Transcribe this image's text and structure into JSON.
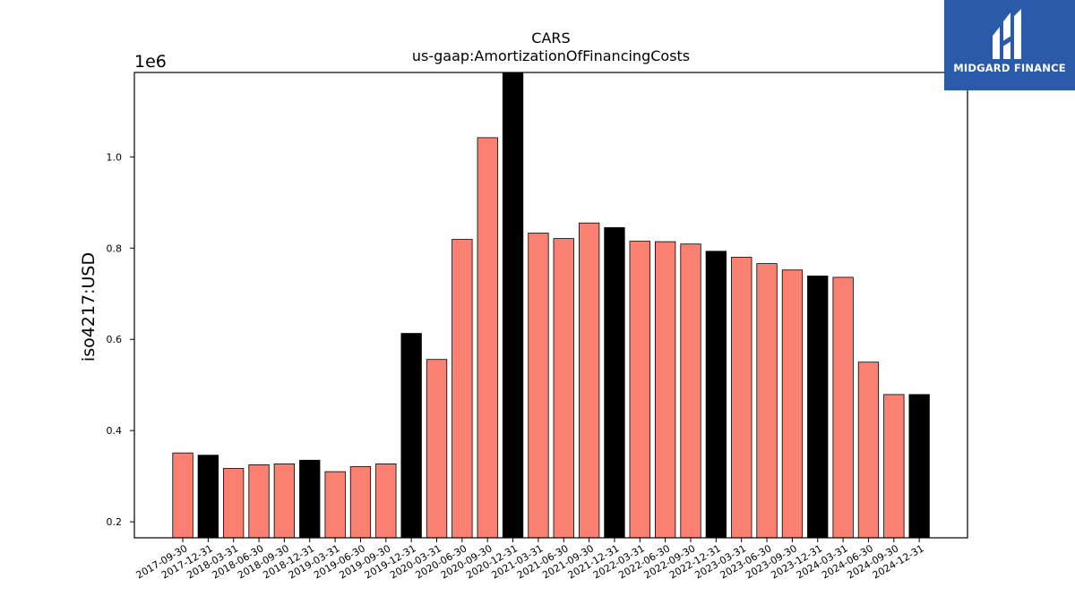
{
  "brand": {
    "name": "MIDGARD FINANCE",
    "color": "#2b5aab",
    "icon": "midgard-logo-icon"
  },
  "chart_data": {
    "type": "bar",
    "title": "CARS",
    "subtitle": "us-gaap:AmortizationOfFinancingCosts",
    "ylabel": "iso4217:USD",
    "xlabel": "",
    "y_offset_label": "1e6",
    "ylim": [
      0.165,
      1.185
    ],
    "yticks": [
      0.2,
      0.4,
      0.6,
      0.8,
      1.0
    ],
    "ytick_labels": [
      "0.2",
      "0.4",
      "0.6",
      "0.8",
      "1.0"
    ],
    "grid": false,
    "legend": "none",
    "colors": {
      "quarter": "#fa8072",
      "year_end": "#000000",
      "edge": "#000000"
    },
    "categories": [
      "2017-09-30",
      "2017-12-31",
      "2018-03-31",
      "2018-06-30",
      "2018-09-30",
      "2018-12-31",
      "2019-03-31",
      "2019-06-30",
      "2019-09-30",
      "2019-12-31",
      "2020-03-31",
      "2020-06-30",
      "2020-09-30",
      "2020-12-31",
      "2021-03-31",
      "2021-06-30",
      "2021-09-30",
      "2021-12-31",
      "2022-03-31",
      "2022-06-30",
      "2022-09-30",
      "2022-12-31",
      "2023-03-31",
      "2023-06-30",
      "2023-09-30",
      "2023-12-31",
      "2024-03-31",
      "2024-06-30",
      "2024-09-30",
      "2024-12-31"
    ],
    "values": [
      0.351,
      0.346,
      0.317,
      0.325,
      0.327,
      0.335,
      0.31,
      0.321,
      0.327,
      0.613,
      0.556,
      0.819,
      1.042,
      1.185,
      0.833,
      0.821,
      0.855,
      0.845,
      0.815,
      0.814,
      0.809,
      0.793,
      0.78,
      0.766,
      0.752,
      0.739,
      0.736,
      0.55,
      0.479,
      0.479
    ],
    "year_end": [
      false,
      true,
      false,
      false,
      false,
      true,
      false,
      false,
      false,
      true,
      false,
      false,
      false,
      true,
      false,
      false,
      false,
      true,
      false,
      false,
      false,
      true,
      false,
      false,
      false,
      true,
      false,
      false,
      false,
      true
    ]
  }
}
